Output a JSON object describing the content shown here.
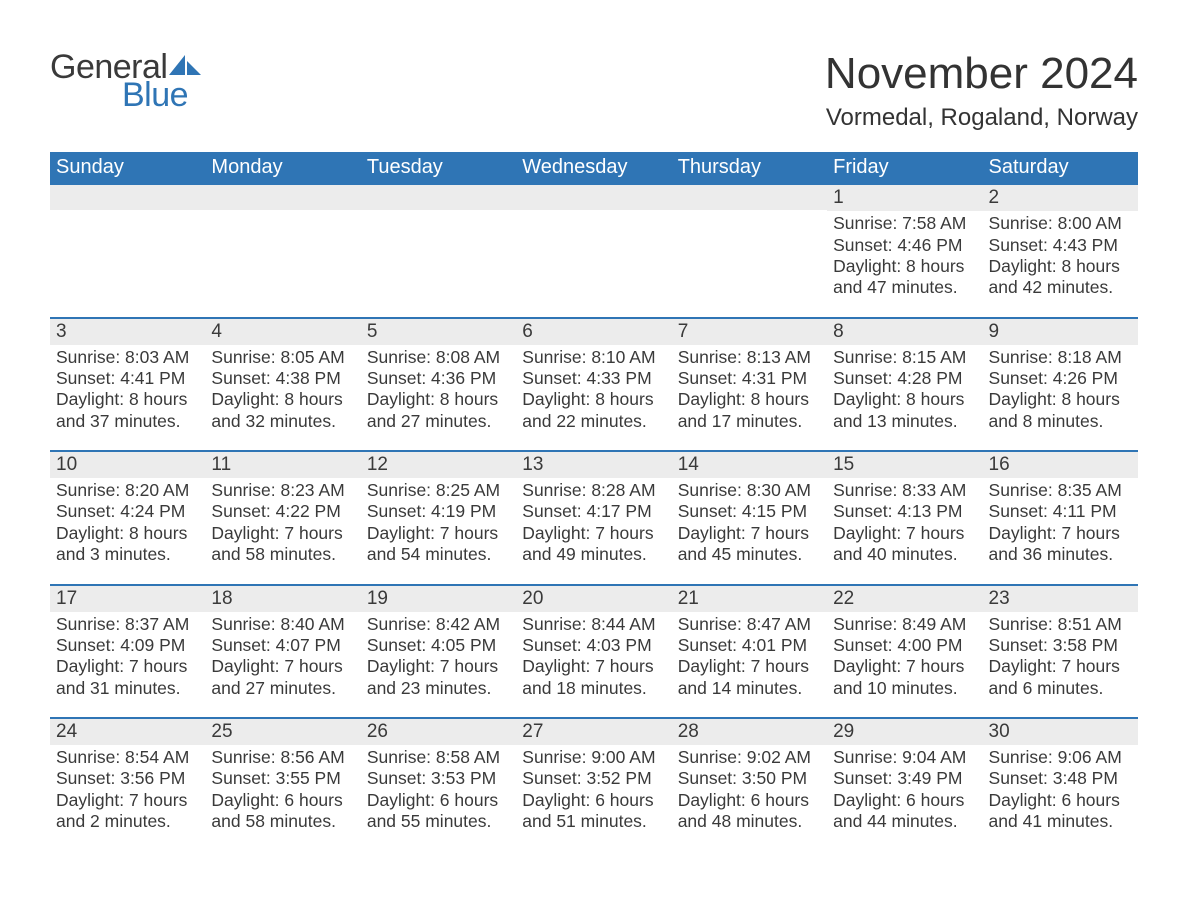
{
  "logo": {
    "word1": "General",
    "word2": "Blue",
    "sail_color": "#2f75b5"
  },
  "title": "November 2024",
  "location": "Vormedal, Rogaland, Norway",
  "colors": {
    "header_bg": "#2f75b5",
    "header_text": "#ffffff",
    "daynum_bg": "#ececec",
    "text": "#3a3a3a",
    "week_border": "#2f75b5",
    "page_bg": "#ffffff"
  },
  "daynames": [
    "Sunday",
    "Monday",
    "Tuesday",
    "Wednesday",
    "Thursday",
    "Friday",
    "Saturday"
  ],
  "weeks": [
    [
      {
        "empty": true
      },
      {
        "empty": true
      },
      {
        "empty": true
      },
      {
        "empty": true
      },
      {
        "empty": true
      },
      {
        "day": "1",
        "sunrise": "Sunrise: 7:58 AM",
        "sunset": "Sunset: 4:46 PM",
        "daylight1": "Daylight: 8 hours",
        "daylight2": "and 47 minutes."
      },
      {
        "day": "2",
        "sunrise": "Sunrise: 8:00 AM",
        "sunset": "Sunset: 4:43 PM",
        "daylight1": "Daylight: 8 hours",
        "daylight2": "and 42 minutes."
      }
    ],
    [
      {
        "day": "3",
        "sunrise": "Sunrise: 8:03 AM",
        "sunset": "Sunset: 4:41 PM",
        "daylight1": "Daylight: 8 hours",
        "daylight2": "and 37 minutes."
      },
      {
        "day": "4",
        "sunrise": "Sunrise: 8:05 AM",
        "sunset": "Sunset: 4:38 PM",
        "daylight1": "Daylight: 8 hours",
        "daylight2": "and 32 minutes."
      },
      {
        "day": "5",
        "sunrise": "Sunrise: 8:08 AM",
        "sunset": "Sunset: 4:36 PM",
        "daylight1": "Daylight: 8 hours",
        "daylight2": "and 27 minutes."
      },
      {
        "day": "6",
        "sunrise": "Sunrise: 8:10 AM",
        "sunset": "Sunset: 4:33 PM",
        "daylight1": "Daylight: 8 hours",
        "daylight2": "and 22 minutes."
      },
      {
        "day": "7",
        "sunrise": "Sunrise: 8:13 AM",
        "sunset": "Sunset: 4:31 PM",
        "daylight1": "Daylight: 8 hours",
        "daylight2": "and 17 minutes."
      },
      {
        "day": "8",
        "sunrise": "Sunrise: 8:15 AM",
        "sunset": "Sunset: 4:28 PM",
        "daylight1": "Daylight: 8 hours",
        "daylight2": "and 13 minutes."
      },
      {
        "day": "9",
        "sunrise": "Sunrise: 8:18 AM",
        "sunset": "Sunset: 4:26 PM",
        "daylight1": "Daylight: 8 hours",
        "daylight2": "and 8 minutes."
      }
    ],
    [
      {
        "day": "10",
        "sunrise": "Sunrise: 8:20 AM",
        "sunset": "Sunset: 4:24 PM",
        "daylight1": "Daylight: 8 hours",
        "daylight2": "and 3 minutes."
      },
      {
        "day": "11",
        "sunrise": "Sunrise: 8:23 AM",
        "sunset": "Sunset: 4:22 PM",
        "daylight1": "Daylight: 7 hours",
        "daylight2": "and 58 minutes."
      },
      {
        "day": "12",
        "sunrise": "Sunrise: 8:25 AM",
        "sunset": "Sunset: 4:19 PM",
        "daylight1": "Daylight: 7 hours",
        "daylight2": "and 54 minutes."
      },
      {
        "day": "13",
        "sunrise": "Sunrise: 8:28 AM",
        "sunset": "Sunset: 4:17 PM",
        "daylight1": "Daylight: 7 hours",
        "daylight2": "and 49 minutes."
      },
      {
        "day": "14",
        "sunrise": "Sunrise: 8:30 AM",
        "sunset": "Sunset: 4:15 PM",
        "daylight1": "Daylight: 7 hours",
        "daylight2": "and 45 minutes."
      },
      {
        "day": "15",
        "sunrise": "Sunrise: 8:33 AM",
        "sunset": "Sunset: 4:13 PM",
        "daylight1": "Daylight: 7 hours",
        "daylight2": "and 40 minutes."
      },
      {
        "day": "16",
        "sunrise": "Sunrise: 8:35 AM",
        "sunset": "Sunset: 4:11 PM",
        "daylight1": "Daylight: 7 hours",
        "daylight2": "and 36 minutes."
      }
    ],
    [
      {
        "day": "17",
        "sunrise": "Sunrise: 8:37 AM",
        "sunset": "Sunset: 4:09 PM",
        "daylight1": "Daylight: 7 hours",
        "daylight2": "and 31 minutes."
      },
      {
        "day": "18",
        "sunrise": "Sunrise: 8:40 AM",
        "sunset": "Sunset: 4:07 PM",
        "daylight1": "Daylight: 7 hours",
        "daylight2": "and 27 minutes."
      },
      {
        "day": "19",
        "sunrise": "Sunrise: 8:42 AM",
        "sunset": "Sunset: 4:05 PM",
        "daylight1": "Daylight: 7 hours",
        "daylight2": "and 23 minutes."
      },
      {
        "day": "20",
        "sunrise": "Sunrise: 8:44 AM",
        "sunset": "Sunset: 4:03 PM",
        "daylight1": "Daylight: 7 hours",
        "daylight2": "and 18 minutes."
      },
      {
        "day": "21",
        "sunrise": "Sunrise: 8:47 AM",
        "sunset": "Sunset: 4:01 PM",
        "daylight1": "Daylight: 7 hours",
        "daylight2": "and 14 minutes."
      },
      {
        "day": "22",
        "sunrise": "Sunrise: 8:49 AM",
        "sunset": "Sunset: 4:00 PM",
        "daylight1": "Daylight: 7 hours",
        "daylight2": "and 10 minutes."
      },
      {
        "day": "23",
        "sunrise": "Sunrise: 8:51 AM",
        "sunset": "Sunset: 3:58 PM",
        "daylight1": "Daylight: 7 hours",
        "daylight2": "and 6 minutes."
      }
    ],
    [
      {
        "day": "24",
        "sunrise": "Sunrise: 8:54 AM",
        "sunset": "Sunset: 3:56 PM",
        "daylight1": "Daylight: 7 hours",
        "daylight2": "and 2 minutes."
      },
      {
        "day": "25",
        "sunrise": "Sunrise: 8:56 AM",
        "sunset": "Sunset: 3:55 PM",
        "daylight1": "Daylight: 6 hours",
        "daylight2": "and 58 minutes."
      },
      {
        "day": "26",
        "sunrise": "Sunrise: 8:58 AM",
        "sunset": "Sunset: 3:53 PM",
        "daylight1": "Daylight: 6 hours",
        "daylight2": "and 55 minutes."
      },
      {
        "day": "27",
        "sunrise": "Sunrise: 9:00 AM",
        "sunset": "Sunset: 3:52 PM",
        "daylight1": "Daylight: 6 hours",
        "daylight2": "and 51 minutes."
      },
      {
        "day": "28",
        "sunrise": "Sunrise: 9:02 AM",
        "sunset": "Sunset: 3:50 PM",
        "daylight1": "Daylight: 6 hours",
        "daylight2": "and 48 minutes."
      },
      {
        "day": "29",
        "sunrise": "Sunrise: 9:04 AM",
        "sunset": "Sunset: 3:49 PM",
        "daylight1": "Daylight: 6 hours",
        "daylight2": "and 44 minutes."
      },
      {
        "day": "30",
        "sunrise": "Sunrise: 9:06 AM",
        "sunset": "Sunset: 3:48 PM",
        "daylight1": "Daylight: 6 hours",
        "daylight2": "and 41 minutes."
      }
    ]
  ]
}
